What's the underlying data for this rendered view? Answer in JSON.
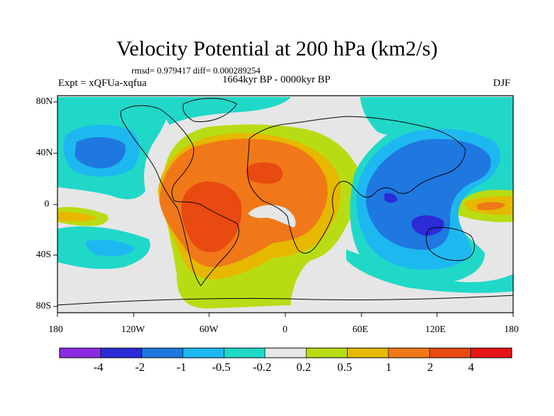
{
  "title": "Velocity Potential at 200 hPa (km2/s)",
  "stats": "rmsd= 0.979417 diff= 0.000289254",
  "period": "1664kyr BP - 0000kyr BP",
  "experiment": "Expt = xQFUa-xqfua",
  "season": "DJF",
  "axes": {
    "x_ticks": [
      "180",
      "120W",
      "60W",
      "0",
      "60E",
      "120E",
      "180"
    ],
    "y_ticks": [
      "80N",
      "40N",
      "0",
      "40S",
      "80S"
    ]
  },
  "colorbar": {
    "labels": [
      "-4",
      "-2",
      "-1",
      "-0.5",
      "-0.2",
      "0.2",
      "0.5",
      "1",
      "2",
      "4"
    ],
    "colors": [
      "#8a2be2",
      "#2b2bd8",
      "#1e78e0",
      "#1eb8f0",
      "#20d8c8",
      "#e6e6e6",
      "#b8dc14",
      "#e6b800",
      "#f07818",
      "#e84a10",
      "#e61414"
    ]
  },
  "palette": {
    "land_outline": "#000000",
    "neutral": "#e6e6e6"
  }
}
